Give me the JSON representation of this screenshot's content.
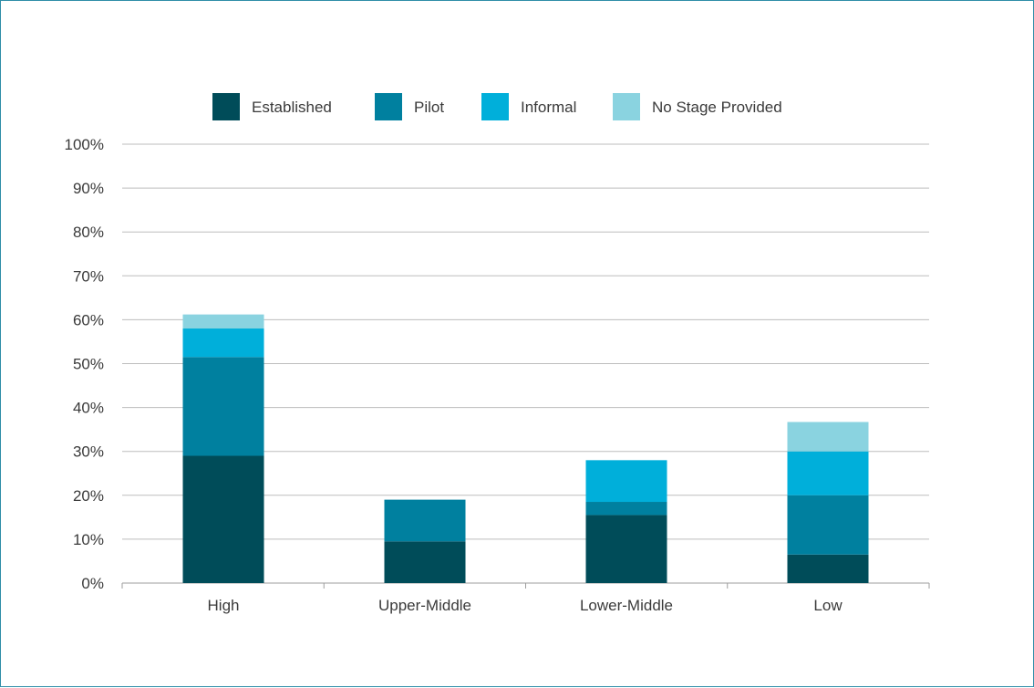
{
  "chart_data": {
    "type": "bar",
    "stacked": true,
    "categories": [
      "High",
      "Upper-Middle",
      "Lower-Middle",
      "Low"
    ],
    "series": [
      {
        "name": "Established",
        "color": "#004c59",
        "values": [
          29.0,
          9.5,
          15.5,
          6.5
        ]
      },
      {
        "name": "Pilot",
        "color": "#00809f",
        "values": [
          22.5,
          9.5,
          3.0,
          13.5
        ]
      },
      {
        "name": "Informal",
        "color": "#00afda",
        "values": [
          6.5,
          0,
          9.5,
          10.0
        ]
      },
      {
        "name": "No Stage Provided",
        "color": "#8ad3e0",
        "values": [
          3.2,
          0,
          0,
          6.7
        ]
      }
    ],
    "yticks": [
      "0%",
      "10%",
      "20%",
      "30%",
      "40%",
      "50%",
      "60%",
      "70%",
      "80%",
      "90%",
      "100%"
    ],
    "ylim": [
      0,
      100
    ],
    "grid": true,
    "legend_position": "top",
    "title": "",
    "xlabel": "",
    "ylabel": ""
  }
}
